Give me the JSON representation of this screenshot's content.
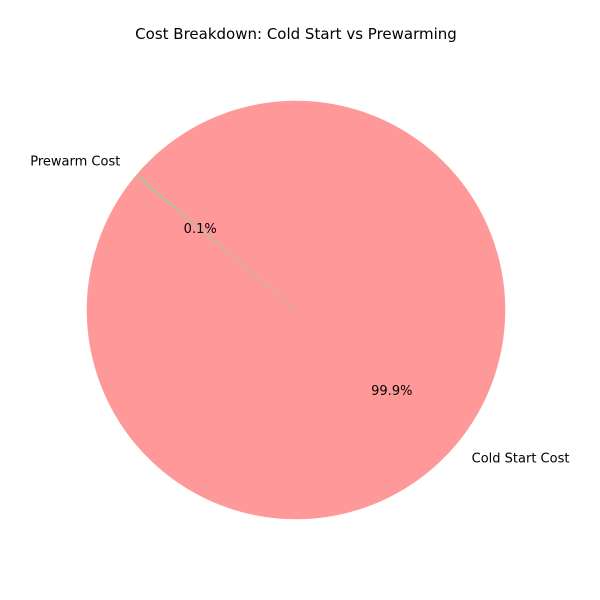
{
  "chart_data": {
    "type": "pie",
    "title": "Cost Breakdown: Cold Start vs Prewarming",
    "slices": [
      {
        "label": "Cold Start Cost",
        "pct_label": "99.9%",
        "value": 99.9,
        "color": "#ff9999"
      },
      {
        "label": "Prewarm Cost",
        "pct_label": "0.1%",
        "value": 0.1,
        "color": "#99cc99"
      }
    ],
    "start_angle_deg": 140,
    "direction": "counterclockwise"
  }
}
